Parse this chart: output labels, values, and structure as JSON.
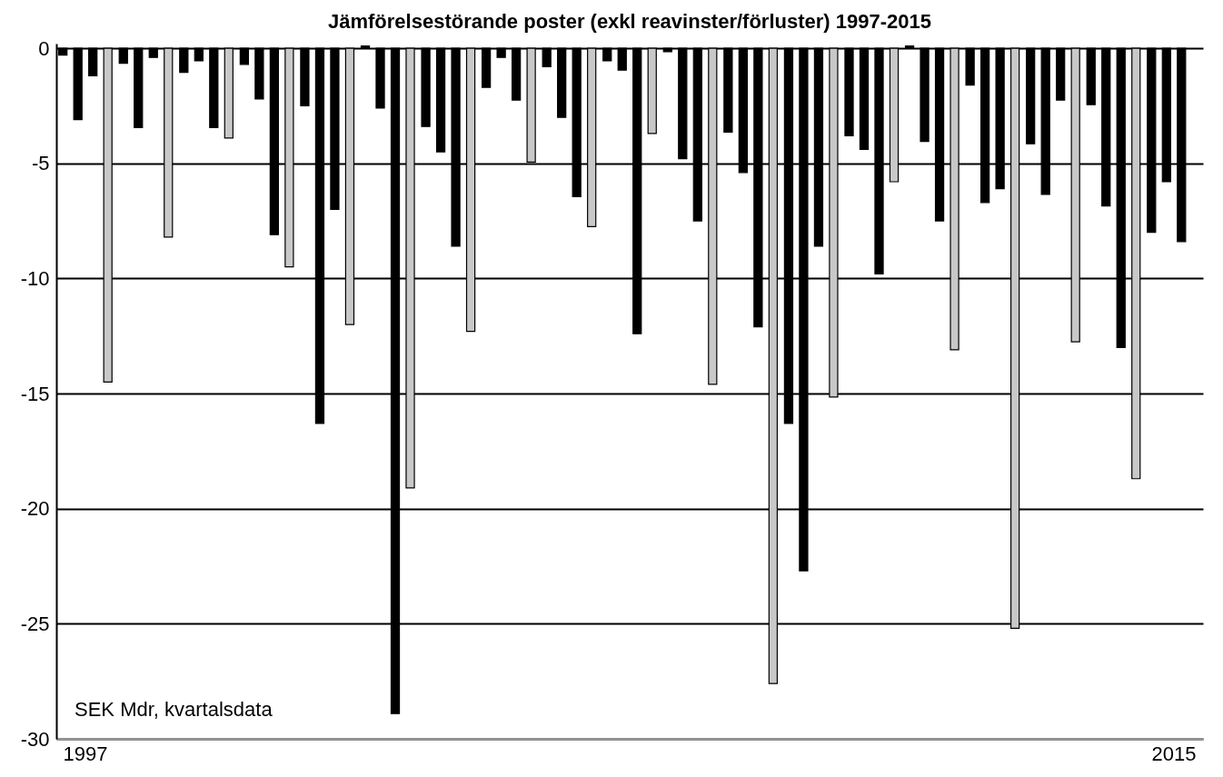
{
  "chart_data": {
    "type": "bar",
    "title": "Jämförelsestörande poster (exkl reavinster/förluster) 1997-2015",
    "categories": [
      "1997",
      null,
      null,
      null,
      null,
      null,
      null,
      null,
      null,
      null,
      null,
      null,
      null,
      null,
      null,
      null,
      null,
      null,
      "2015"
    ],
    "series": [
      {
        "color": "#000000",
        "values": [
          -0.3,
          -0.65,
          -1.05,
          -0.7,
          -2.5,
          0.1,
          -3.4,
          -1.7,
          -0.8,
          -0.55,
          -0.15,
          -3.65,
          -16.3,
          -3.8,
          0.1,
          -1.6,
          -4.15,
          -2.45,
          -8.0
        ]
      },
      {
        "color": "#000000",
        "values": [
          -3.1,
          -3.45,
          -0.55,
          -2.2,
          -16.3,
          -2.6,
          -4.5,
          -0.4,
          -3.0,
          -0.95,
          -4.8,
          -5.4,
          -22.7,
          -4.4,
          -4.05,
          -6.7,
          -6.35,
          -6.85,
          -5.8
        ]
      },
      {
        "color": "#000000",
        "values": [
          -1.2,
          -0.4,
          -3.45,
          -8.1,
          -7.0,
          -28.9,
          -8.6,
          -2.25,
          -6.45,
          -12.4,
          -7.5,
          -12.1,
          -8.6,
          -9.8,
          -7.5,
          -6.1,
          -2.25,
          -13.0,
          -8.4
        ]
      },
      {
        "color": "#c8c8c8",
        "values": [
          -14.5,
          -8.2,
          -3.9,
          -9.5,
          -12.0,
          -19.1,
          -12.3,
          -4.95,
          -7.75,
          -3.7,
          -14.6,
          -27.6,
          -15.15,
          -5.8,
          -13.1,
          -25.2,
          -12.75,
          -18.7,
          null
        ]
      }
    ],
    "ylim": [
      -30,
      0.2
    ],
    "yticks": [
      -30,
      -25,
      -20,
      -15,
      -10,
      -5,
      0
    ],
    "grid": "y",
    "annotations": [
      "SEK Mdr, kvartalsdata"
    ]
  }
}
